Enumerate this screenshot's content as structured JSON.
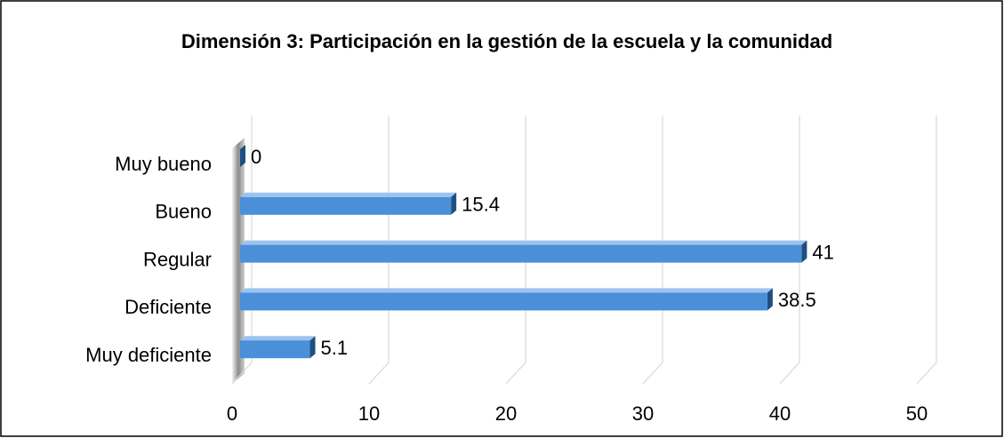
{
  "chart_data": {
    "type": "bar3d_horizontal",
    "title": "Dimensión 3: Participación en la gestión de la escuela y la comunidad",
    "categories": [
      "Muy bueno",
      "Bueno",
      "Regular",
      "Deficiente",
      "Muy deficiente"
    ],
    "values": [
      0,
      15.4,
      41,
      38.5,
      5.1
    ],
    "color": "#4a8fd8",
    "xlim": [
      0,
      50
    ],
    "xticks": [
      0,
      10,
      20,
      30,
      40,
      50
    ],
    "grid": true
  }
}
